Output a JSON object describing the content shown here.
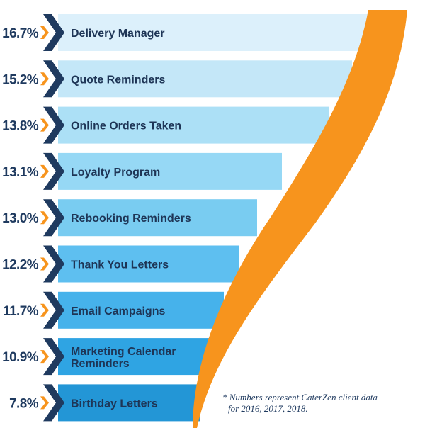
{
  "chart_data": {
    "type": "bar",
    "orientation": "horizontal",
    "title": "",
    "xlabel": "",
    "ylabel": "",
    "categories": [
      "Delivery Manager",
      "Quote Reminders",
      "Online Orders Taken",
      "Loyalty Program",
      "Rebooking Reminders",
      "Thank You Letters",
      "Email Campaigns",
      "Marketing Calendar Reminders",
      "Birthday Letters"
    ],
    "category_lines": [
      [
        "Delivery Manager"
      ],
      [
        "Quote Reminders"
      ],
      [
        "Online Orders Taken"
      ],
      [
        "Loyalty Program"
      ],
      [
        "Rebooking Reminders"
      ],
      [
        "Thank You Letters"
      ],
      [
        "Email Campaigns"
      ],
      [
        "Marketing Calendar",
        "Reminders"
      ],
      [
        "Birthday Letters"
      ]
    ],
    "values": [
      16.7,
      15.2,
      13.8,
      13.1,
      13.0,
      12.2,
      11.7,
      10.9,
      7.8
    ],
    "value_labels": [
      "16.7%",
      "15.2%",
      "13.8%",
      "13.1%",
      "13.0%",
      "12.2%",
      "11.7%",
      "10.9%",
      "7.8%"
    ],
    "unit": "%",
    "colors": {
      "bars": [
        "#dcf0fb",
        "#c4e7f8",
        "#ace0f6",
        "#96d8f5",
        "#79ccf1",
        "#5ebff0",
        "#46b2eb",
        "#2fa4e3",
        "#2396d6"
      ],
      "chevron_dark": "#1f3a5f",
      "chevron_accent": "#f7941d",
      "swoosh": "#f7941d",
      "label_text": "#1e3556"
    },
    "footnote": {
      "lines": [
        "* Numbers represent CaterZen client data",
        "for 2016, 2017, 2018."
      ]
    }
  }
}
